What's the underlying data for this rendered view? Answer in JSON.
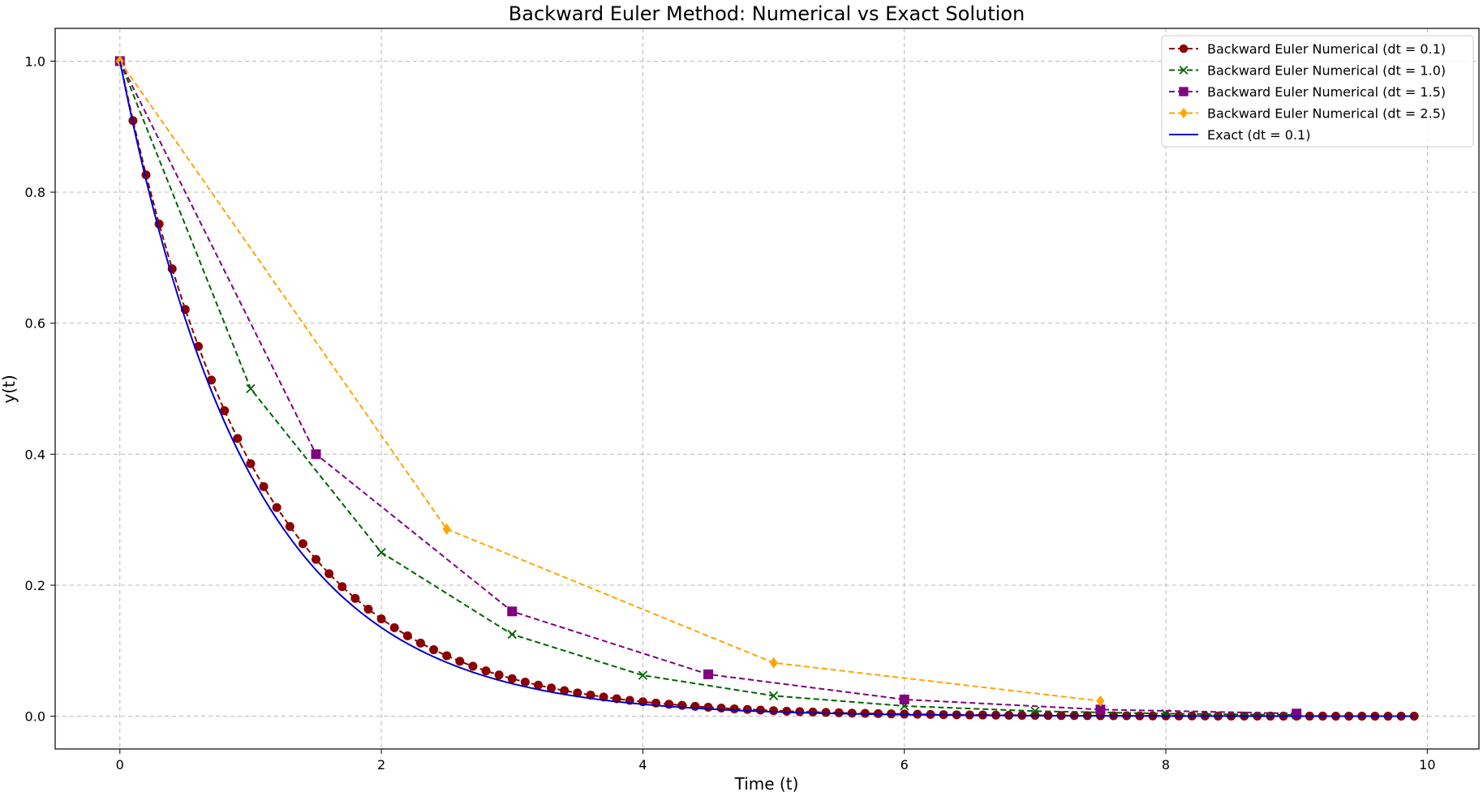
{
  "chart_data": {
    "type": "line",
    "title": "Backward Euler Method: Numerical vs Exact Solution",
    "xlabel": "Time (t)",
    "ylabel": "y(t)",
    "xlim": [
      -0.495,
      10.395
    ],
    "ylim": [
      -0.05,
      1.05
    ],
    "xticks": [
      0,
      2,
      4,
      6,
      8,
      10
    ],
    "yticks": [
      0.0,
      0.2,
      0.4,
      0.6,
      0.8,
      1.0
    ],
    "xtick_labels": [
      "0",
      "2",
      "4",
      "6",
      "8",
      "10"
    ],
    "ytick_labels": [
      "0.0",
      "0.2",
      "0.4",
      "0.6",
      "0.8",
      "1.0"
    ],
    "grid": true,
    "legend_position": "top-right",
    "series": [
      {
        "name": "Backward Euler Numerical (dt = 0.1)",
        "color": "#8b0000",
        "linestyle": "dashed",
        "marker": "circle",
        "x": [
          0.0,
          0.1,
          0.2,
          0.3,
          0.4,
          0.5,
          0.6,
          0.7,
          0.8,
          0.9,
          1.0,
          1.1,
          1.2,
          1.3,
          1.4,
          1.5,
          1.6,
          1.7,
          1.8,
          1.9,
          2.0,
          2.1,
          2.2,
          2.3,
          2.4,
          2.5,
          2.6,
          2.7,
          2.8,
          2.9,
          3.0,
          3.1,
          3.2,
          3.3,
          3.4,
          3.5,
          3.6,
          3.7,
          3.8,
          3.9,
          4.0,
          4.1,
          4.2,
          4.3,
          4.4,
          4.5,
          4.6,
          4.7,
          4.8,
          4.9,
          5.0,
          5.1,
          5.2,
          5.3,
          5.4,
          5.5,
          5.6,
          5.7,
          5.8,
          5.9,
          6.0,
          6.1,
          6.2,
          6.3,
          6.4,
          6.5,
          6.6,
          6.7,
          6.8,
          6.9,
          7.0,
          7.1,
          7.2,
          7.3,
          7.4,
          7.5,
          7.6,
          7.7,
          7.8,
          7.9,
          8.0,
          8.1,
          8.2,
          8.3,
          8.4,
          8.5,
          8.6,
          8.7,
          8.8,
          8.9,
          9.0,
          9.1,
          9.2,
          9.3,
          9.4,
          9.5,
          9.6,
          9.7,
          9.8,
          9.9
        ],
        "y": [
          1.0,
          0.9091,
          0.8264,
          0.7513,
          0.683,
          0.6209,
          0.5645,
          0.5132,
          0.4665,
          0.4241,
          0.3855,
          0.3505,
          0.3186,
          0.2897,
          0.2633,
          0.2394,
          0.2176,
          0.1978,
          0.1799,
          0.1635,
          0.1486,
          0.1351,
          0.1228,
          0.1117,
          0.1015,
          0.0923,
          0.0839,
          0.0763,
          0.0693,
          0.063,
          0.0573,
          0.0521,
          0.0474,
          0.0431,
          0.0391,
          0.0356,
          0.0323,
          0.0294,
          0.0267,
          0.0243,
          0.0221,
          0.0201,
          0.0183,
          0.0166,
          0.0151,
          0.0137,
          0.0125,
          0.0113,
          0.0103,
          0.0094,
          0.0085,
          0.0077,
          0.007,
          0.0064,
          0.0058,
          0.0053,
          0.0048,
          0.0044,
          0.004,
          0.0036,
          0.0033,
          0.003,
          0.0027,
          0.0025,
          0.0022,
          0.002,
          0.0019,
          0.0017,
          0.0015,
          0.0014,
          0.0013,
          0.0012,
          0.0011,
          0.001,
          0.0009,
          0.0008,
          0.0007,
          0.0007,
          0.0006,
          0.0005,
          0.0005,
          0.0004,
          0.0004,
          0.0004,
          0.0003,
          0.0003,
          0.0003,
          0.0003,
          0.0002,
          0.0002,
          0.0002,
          0.0002,
          0.0002,
          0.0001,
          0.0001,
          0.0001,
          0.0001,
          0.0001,
          0.0001,
          0.0001
        ]
      },
      {
        "name": "Backward Euler Numerical (dt = 1.0)",
        "color": "#006400",
        "linestyle": "dashed",
        "marker": "x",
        "x": [
          0,
          1,
          2,
          3,
          4,
          5,
          6,
          7,
          8,
          9
        ],
        "y": [
          1.0,
          0.5,
          0.25,
          0.125,
          0.0625,
          0.03125,
          0.015625,
          0.0078125,
          0.00390625,
          0.001953125
        ]
      },
      {
        "name": "Backward Euler Numerical (dt = 1.5)",
        "color": "#800080",
        "linestyle": "dashed",
        "marker": "square",
        "x": [
          0,
          1.5,
          3.0,
          4.5,
          6.0,
          7.5,
          9.0
        ],
        "y": [
          1.0,
          0.4,
          0.16,
          0.064,
          0.0256,
          0.01024,
          0.004096
        ]
      },
      {
        "name": "Backward Euler Numerical (dt = 2.5)",
        "color": "#ffa500",
        "linestyle": "dashed",
        "marker": "diamond",
        "x": [
          0,
          2.5,
          5.0,
          7.5
        ],
        "y": [
          1.0,
          0.2857,
          0.0816,
          0.0233
        ]
      },
      {
        "name": "Exact (dt = 0.1)",
        "color": "#0000cd",
        "linestyle": "solid",
        "marker": "none",
        "function": "exp(-t)",
        "x_range": [
          0,
          9.9
        ]
      }
    ]
  }
}
